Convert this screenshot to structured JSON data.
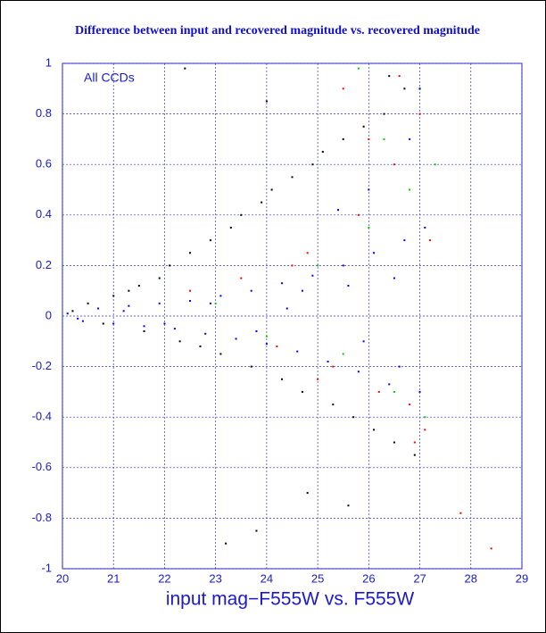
{
  "chart_data": {
    "type": "scatter",
    "title": "Difference between input and recovered magnitude vs. recovered magnitude",
    "annotation": "All CCDs",
    "x_label": "input mag−F555W vs. F555W",
    "xlim": [
      20,
      29
    ],
    "ylim": [
      -1,
      1
    ],
    "xticks": [
      20,
      21,
      22,
      23,
      24,
      25,
      26,
      27,
      28,
      29
    ],
    "yticks": [
      -1,
      -0.8,
      -0.6,
      -0.4,
      -0.2,
      0,
      0.2,
      0.4,
      0.6,
      0.8,
      1
    ],
    "grid": true,
    "series": [
      {
        "color": "#000000",
        "x": [
          20.2,
          20.5,
          20.8,
          21.0,
          21.3,
          21.6,
          21.9,
          22.1,
          22.3,
          22.5,
          22.7,
          22.9,
          23.1,
          23.3,
          23.5,
          23.7,
          23.9,
          24.1,
          24.3,
          24.5,
          24.7,
          24.9,
          25.1,
          25.3,
          25.5,
          25.7,
          25.9,
          26.1,
          26.3,
          26.5,
          26.7,
          26.9,
          22.4,
          23.2,
          24.0,
          24.8,
          25.6,
          26.4,
          21.5,
          23.8
        ],
        "y": [
          0.02,
          0.05,
          -0.03,
          0.08,
          0.1,
          -0.06,
          0.15,
          0.2,
          -0.1,
          0.25,
          -0.12,
          0.3,
          -0.15,
          0.35,
          0.4,
          -0.2,
          0.45,
          0.5,
          -0.25,
          0.55,
          -0.3,
          0.6,
          0.65,
          -0.35,
          0.7,
          -0.4,
          0.75,
          -0.45,
          0.8,
          -0.5,
          0.9,
          -0.55,
          0.98,
          -0.9,
          0.85,
          -0.7,
          -0.75,
          0.95,
          0.12,
          -0.85
        ]
      },
      {
        "color": "#ff0000",
        "x": [
          22.5,
          23.5,
          24.2,
          24.8,
          25.3,
          25.8,
          26.2,
          26.5,
          26.8,
          27.0,
          27.1,
          25.5,
          26.0,
          26.6,
          27.2,
          24.5,
          25.0,
          26.9,
          27.8,
          28.4
        ],
        "y": [
          0.1,
          0.15,
          -0.12,
          0.25,
          -0.2,
          0.4,
          -0.3,
          0.6,
          -0.35,
          0.8,
          -0.45,
          0.9,
          0.7,
          0.95,
          0.3,
          0.2,
          -0.25,
          -0.5,
          -0.78,
          -0.92
        ]
      },
      {
        "color": "#00cc00",
        "x": [
          23.0,
          24.0,
          25.0,
          25.5,
          26.0,
          26.5,
          26.8,
          27.0,
          27.1,
          26.3,
          25.8,
          27.3
        ],
        "y": [
          0.05,
          -0.08,
          0.2,
          -0.15,
          0.35,
          -0.3,
          0.5,
          0.9,
          -0.4,
          0.7,
          0.98,
          0.6
        ]
      },
      {
        "color": "#0000ff",
        "x": [
          20.1,
          20.4,
          20.7,
          21.0,
          21.3,
          21.6,
          21.9,
          22.2,
          22.5,
          22.8,
          23.1,
          23.4,
          23.7,
          24.0,
          24.3,
          24.6,
          24.9,
          25.2,
          25.5,
          25.8,
          26.1,
          26.4,
          26.7,
          27.0,
          20.3,
          21.2,
          22.0,
          22.9,
          23.8,
          24.7,
          25.6,
          26.5,
          27.1,
          26.0,
          26.8,
          25.4,
          26.6,
          27.0,
          24.4,
          25.9
        ],
        "y": [
          0.01,
          -0.02,
          0.03,
          -0.03,
          0.04,
          -0.04,
          0.05,
          -0.05,
          0.06,
          -0.07,
          0.08,
          -0.09,
          0.1,
          -0.11,
          0.13,
          -0.14,
          0.16,
          -0.18,
          0.2,
          -0.22,
          0.25,
          -0.27,
          0.3,
          -0.3,
          -0.01,
          0.02,
          -0.03,
          0.05,
          -0.06,
          0.1,
          0.12,
          0.15,
          0.35,
          0.5,
          0.7,
          0.42,
          -0.2,
          0.9,
          0.03,
          -0.1
        ]
      }
    ]
  }
}
